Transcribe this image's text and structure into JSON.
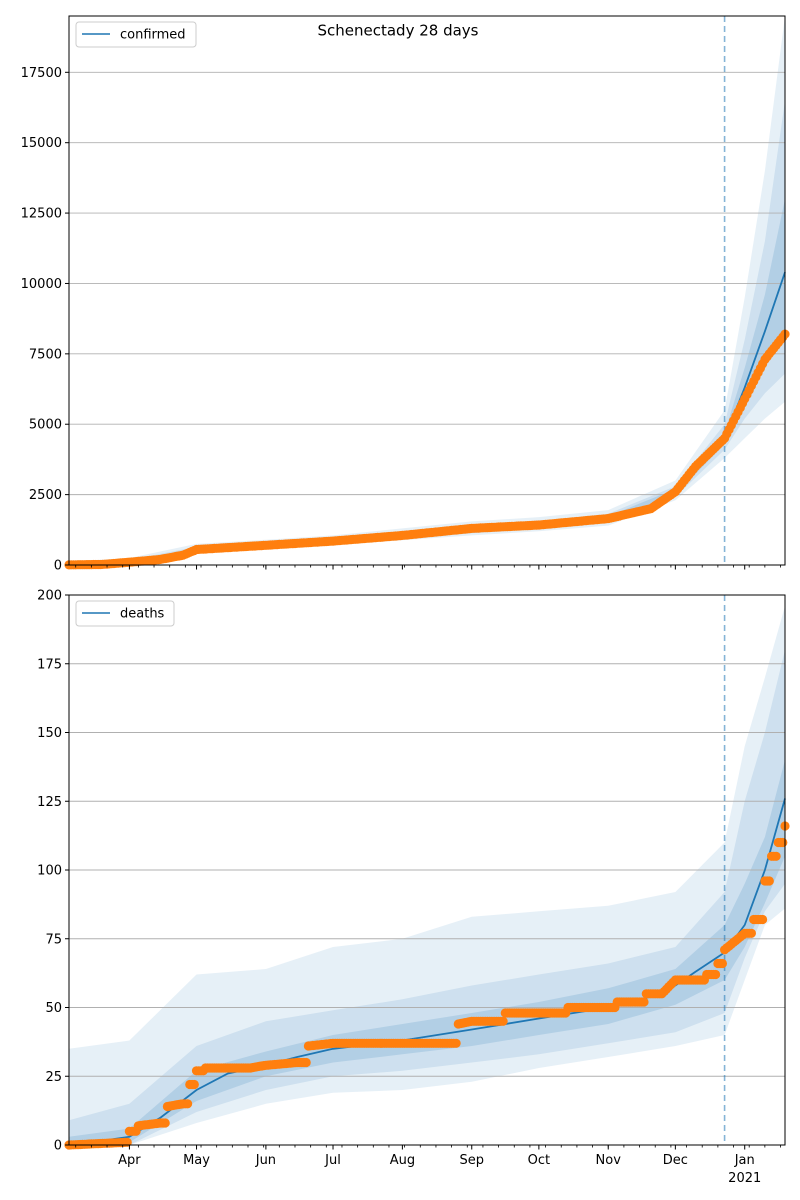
{
  "figure": {
    "title": "Schenectady 28 days"
  },
  "colors": {
    "model": "#1f77b4",
    "observed": "#ff7f0e",
    "grid": "#b0b0b0",
    "band": "#1f77b4"
  },
  "chart_data": [
    {
      "type": "line",
      "title": "Schenectady 28 days",
      "legend": {
        "entries": [
          "confirmed"
        ],
        "placement": "top-left"
      },
      "grid": {
        "y": true,
        "x": false
      },
      "x_range": [
        "2020-03-05",
        "2021-01-19"
      ],
      "ylim": [
        0,
        19500
      ],
      "y_ticks": [
        0,
        2500,
        5000,
        7500,
        10000,
        12500,
        15000,
        17500
      ],
      "y_tick_labels": [
        "0",
        "2500",
        "5000",
        "7500",
        "10000",
        "12500",
        "15000",
        "17500"
      ],
      "x_tick_labels": [
        "Apr",
        "May",
        "Jun",
        "Jul",
        "Aug",
        "Sep",
        "Oct",
        "Nov",
        "Dec",
        "Jan"
      ],
      "x_tick_year": "2021",
      "vline": "2020-12-23",
      "series": [
        {
          "name": "confirmed",
          "kind": "model-line",
          "points": [
            [
              "2020-03-05",
              5
            ],
            [
              "2020-04-01",
              100
            ],
            [
              "2020-05-01",
              550
            ],
            [
              "2020-06-01",
              700
            ],
            [
              "2020-07-01",
              850
            ],
            [
              "2020-08-01",
              1050
            ],
            [
              "2020-09-01",
              1250
            ],
            [
              "2020-10-01",
              1420
            ],
            [
              "2020-11-01",
              1650
            ],
            [
              "2020-11-20",
              2000
            ],
            [
              "2020-12-01",
              2600
            ],
            [
              "2020-12-10",
              3500
            ],
            [
              "2020-12-23",
              4500
            ],
            [
              "2021-01-01",
              6300
            ],
            [
              "2021-01-10",
              8300
            ],
            [
              "2021-01-19",
              10400
            ]
          ]
        },
        {
          "kind": "observed",
          "points": [
            [
              "2020-03-05",
              5
            ],
            [
              "2020-03-20",
              20
            ],
            [
              "2020-04-01",
              100
            ],
            [
              "2020-04-15",
              200
            ],
            [
              "2020-04-25",
              350
            ],
            [
              "2020-05-01",
              550
            ],
            [
              "2020-06-01",
              700
            ],
            [
              "2020-07-01",
              850
            ],
            [
              "2020-08-01",
              1050
            ],
            [
              "2020-09-01",
              1300
            ],
            [
              "2020-10-01",
              1420
            ],
            [
              "2020-11-01",
              1650
            ],
            [
              "2020-11-20",
              2000
            ],
            [
              "2020-12-01",
              2600
            ],
            [
              "2020-12-10",
              3500
            ],
            [
              "2020-12-23",
              4500
            ],
            [
              "2021-01-01",
              5900
            ],
            [
              "2021-01-10",
              7300
            ],
            [
              "2021-01-19",
              8200
            ]
          ]
        }
      ],
      "bands": [
        {
          "points": [
            [
              "2020-03-05",
              0,
              120
            ],
            [
              "2020-04-01",
              50,
              250
            ],
            [
              "2020-05-01",
              420,
              750
            ],
            [
              "2020-06-01",
              560,
              900
            ],
            [
              "2020-07-01",
              700,
              1050
            ],
            [
              "2020-08-01",
              880,
              1300
            ],
            [
              "2020-09-01",
              1050,
              1550
            ],
            [
              "2020-10-01",
              1200,
              1700
            ],
            [
              "2020-11-01",
              1400,
              1950
            ],
            [
              "2020-12-01",
              2300,
              3000
            ],
            [
              "2020-12-23",
              3800,
              5500
            ],
            [
              "2021-01-01",
              4500,
              9500
            ],
            [
              "2021-01-10",
              5200,
              14000
            ],
            [
              "2021-01-19",
              5800,
              19500
            ]
          ]
        },
        {
          "points": [
            [
              "2020-03-05",
              0,
              80
            ],
            [
              "2020-04-01",
              70,
              180
            ],
            [
              "2020-05-01",
              470,
              650
            ],
            [
              "2020-06-01",
              620,
              800
            ],
            [
              "2020-07-01",
              760,
              950
            ],
            [
              "2020-08-01",
              950,
              1180
            ],
            [
              "2020-09-01",
              1130,
              1400
            ],
            [
              "2020-10-01",
              1290,
              1560
            ],
            [
              "2020-11-01",
              1500,
              1820
            ],
            [
              "2020-12-01",
              2420,
              2800
            ],
            [
              "2020-12-23",
              4100,
              5000
            ],
            [
              "2021-01-01",
              5200,
              8000
            ],
            [
              "2021-01-10",
              6100,
              11500
            ],
            [
              "2021-01-19",
              6800,
              16500
            ]
          ]
        },
        {
          "points": [
            [
              "2020-03-05",
              0,
              40
            ],
            [
              "2020-04-01",
              85,
              120
            ],
            [
              "2020-05-01",
              510,
              590
            ],
            [
              "2020-06-01",
              660,
              750
            ],
            [
              "2020-07-01",
              800,
              900
            ],
            [
              "2020-08-01",
              1000,
              1100
            ],
            [
              "2020-09-01",
              1190,
              1320
            ],
            [
              "2020-10-01",
              1350,
              1490
            ],
            [
              "2020-11-01",
              1570,
              1730
            ],
            [
              "2020-12-01",
              2500,
              2700
            ],
            [
              "2020-12-23",
              4300,
              4700
            ],
            [
              "2021-01-01",
              5800,
              7000
            ],
            [
              "2021-01-10",
              7200,
              9600
            ],
            [
              "2021-01-19",
              8200,
              13000
            ]
          ]
        }
      ]
    },
    {
      "type": "line",
      "legend": {
        "entries": [
          "deaths"
        ],
        "placement": "top-left"
      },
      "grid": {
        "y": true,
        "x": false
      },
      "x_range": [
        "2020-03-05",
        "2021-01-19"
      ],
      "ylim": [
        0,
        200
      ],
      "y_ticks": [
        0,
        25,
        50,
        75,
        100,
        125,
        150,
        175,
        200
      ],
      "y_tick_labels": [
        "0",
        "25",
        "50",
        "75",
        "100",
        "125",
        "150",
        "175",
        "200"
      ],
      "x_tick_labels": [
        "Apr",
        "May",
        "Jun",
        "Jul",
        "Aug",
        "Sep",
        "Oct",
        "Nov",
        "Dec",
        "Jan"
      ],
      "x_tick_year": "2021",
      "vline": "2020-12-23",
      "series": [
        {
          "name": "deaths",
          "kind": "model-line",
          "points": [
            [
              "2020-03-05",
              0
            ],
            [
              "2020-03-15",
              1
            ],
            [
              "2020-04-01",
              3
            ],
            [
              "2020-04-15",
              10
            ],
            [
              "2020-05-01",
              20
            ],
            [
              "2020-05-15",
              26
            ],
            [
              "2020-06-01",
              29
            ],
            [
              "2020-06-15",
              32
            ],
            [
              "2020-07-01",
              35
            ],
            [
              "2020-08-01",
              38
            ],
            [
              "2020-09-01",
              42
            ],
            [
              "2020-10-01",
              46
            ],
            [
              "2020-11-01",
              50
            ],
            [
              "2020-11-20",
              54
            ],
            [
              "2020-12-01",
              58
            ],
            [
              "2020-12-10",
              63
            ],
            [
              "2020-12-23",
              70
            ],
            [
              "2021-01-01",
              80
            ],
            [
              "2021-01-10",
              100
            ],
            [
              "2021-01-19",
              126
            ]
          ]
        },
        {
          "kind": "observed",
          "points": [
            [
              "2020-03-05",
              0
            ],
            [
              "2020-03-31",
              1
            ],
            [
              "2020-04-01",
              5
            ],
            [
              "2020-04-05",
              7
            ],
            [
              "2020-04-15",
              8
            ],
            [
              "2020-04-18",
              14
            ],
            [
              "2020-04-25",
              15
            ],
            [
              "2020-04-28",
              22
            ],
            [
              "2020-05-01",
              27
            ],
            [
              "2020-05-05",
              28
            ],
            [
              "2020-05-25",
              28
            ],
            [
              "2020-06-01",
              29
            ],
            [
              "2020-06-15",
              30
            ],
            [
              "2020-06-20",
              36
            ],
            [
              "2020-07-01",
              37
            ],
            [
              "2020-08-24",
              37
            ],
            [
              "2020-08-26",
              44
            ],
            [
              "2020-09-01",
              45
            ],
            [
              "2020-09-14",
              45
            ],
            [
              "2020-09-16",
              48
            ],
            [
              "2020-10-10",
              48
            ],
            [
              "2020-10-14",
              50
            ],
            [
              "2020-11-01",
              50
            ],
            [
              "2020-11-05",
              52
            ],
            [
              "2020-11-15",
              52
            ],
            [
              "2020-11-18",
              55
            ],
            [
              "2020-11-25",
              55
            ],
            [
              "2020-12-01",
              60
            ],
            [
              "2020-12-10",
              60
            ],
            [
              "2020-12-15",
              62
            ],
            [
              "2020-12-20",
              66
            ],
            [
              "2020-12-23",
              71
            ],
            [
              "2021-01-01",
              77
            ],
            [
              "2021-01-05",
              82
            ],
            [
              "2021-01-10",
              96
            ],
            [
              "2021-01-13",
              105
            ],
            [
              "2021-01-16",
              110
            ],
            [
              "2021-01-19",
              116
            ]
          ]
        }
      ],
      "bands": [
        {
          "points": [
            [
              "2020-03-05",
              0,
              35
            ],
            [
              "2020-04-01",
              0,
              38
            ],
            [
              "2020-05-01",
              8,
              62
            ],
            [
              "2020-06-01",
              15,
              64
            ],
            [
              "2020-07-01",
              19,
              72
            ],
            [
              "2020-08-01",
              20,
              75
            ],
            [
              "2020-09-01",
              23,
              83
            ],
            [
              "2020-10-01",
              28,
              85
            ],
            [
              "2020-11-01",
              32,
              87
            ],
            [
              "2020-12-01",
              36,
              92
            ],
            [
              "2020-12-23",
              40,
              110
            ],
            [
              "2021-01-01",
              60,
              145
            ],
            [
              "2021-01-10",
              80,
              170
            ],
            [
              "2021-01-19",
              86,
              196
            ]
          ]
        },
        {
          "points": [
            [
              "2020-03-05",
              0,
              9
            ],
            [
              "2020-04-01",
              0,
              15
            ],
            [
              "2020-05-01",
              12,
              36
            ],
            [
              "2020-06-01",
              20,
              45
            ],
            [
              "2020-07-01",
              25,
              49
            ],
            [
              "2020-08-01",
              27,
              53
            ],
            [
              "2020-09-01",
              30,
              58
            ],
            [
              "2020-10-01",
              33,
              62
            ],
            [
              "2020-11-01",
              37,
              66
            ],
            [
              "2020-12-01",
              41,
              72
            ],
            [
              "2020-12-23",
              48,
              92
            ],
            [
              "2021-01-01",
              68,
              125
            ],
            [
              "2021-01-10",
              85,
              150
            ],
            [
              "2021-01-19",
              95,
              180
            ]
          ]
        },
        {
          "points": [
            [
              "2020-03-05",
              0,
              3
            ],
            [
              "2020-04-01",
              1,
              6
            ],
            [
              "2020-05-01",
              16,
              27
            ],
            [
              "2020-06-01",
              25,
              34
            ],
            [
              "2020-07-01",
              30,
              40
            ],
            [
              "2020-08-01",
              33,
              44
            ],
            [
              "2020-09-01",
              36,
              48
            ],
            [
              "2020-10-01",
              40,
              52
            ],
            [
              "2020-11-01",
              44,
              57
            ],
            [
              "2020-12-01",
              51,
              64
            ],
            [
              "2020-12-23",
              60,
              80
            ],
            [
              "2021-01-01",
              72,
              95
            ],
            [
              "2021-01-10",
              88,
              112
            ],
            [
              "2021-01-19",
              105,
              140
            ]
          ]
        }
      ]
    }
  ]
}
